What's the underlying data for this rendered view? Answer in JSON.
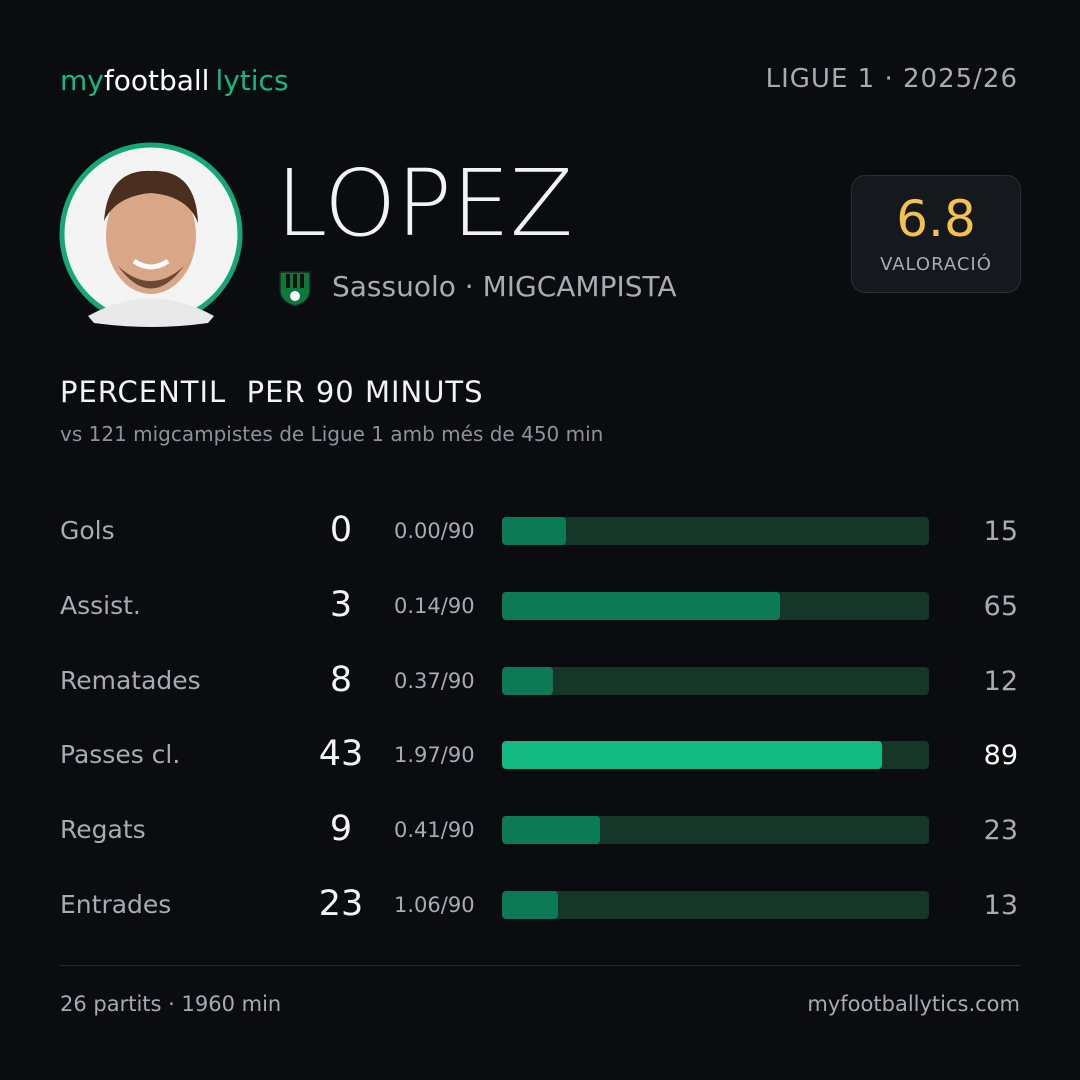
{
  "header": {
    "brand": [
      "my",
      "football",
      "lytics"
    ],
    "league": "LIGUE 1 · 2025/26"
  },
  "player": {
    "name": "LOPEZ",
    "team_line": "Sassuolo · MIGCAMPISTA",
    "rating": "6.8",
    "rating_label": "VALORACIÓ"
  },
  "section": {
    "title": "PERCENTIL  PER 90 MINUTS",
    "subtitle": "vs 121 migcampistes de Ligue 1 amb més de 450 min"
  },
  "rows": [
    {
      "label": "Gols",
      "total": "0",
      "per90": "0.00/90",
      "percentile": 15,
      "color": "#0b7a55"
    },
    {
      "label": "Assist.",
      "total": "3",
      "per90": "0.14/90",
      "percentile": 65,
      "color": "#0b7a55"
    },
    {
      "label": "Rematades",
      "total": "8",
      "per90": "0.37/90",
      "percentile": 12,
      "color": "#0b7a55"
    },
    {
      "label": "Passes cl.",
      "total": "43",
      "per90": "1.97/90",
      "percentile": 89,
      "color": "#12b981"
    },
    {
      "label": "Regats",
      "total": "9",
      "per90": "0.41/90",
      "percentile": 23,
      "color": "#0b7a55"
    },
    {
      "label": "Entrades",
      "total": "23",
      "per90": "1.06/90",
      "percentile": 13,
      "color": "#0b7a55"
    }
  ],
  "footer": {
    "stats": "26 partits · 1960 min",
    "site": "myfootballytics.com"
  }
}
